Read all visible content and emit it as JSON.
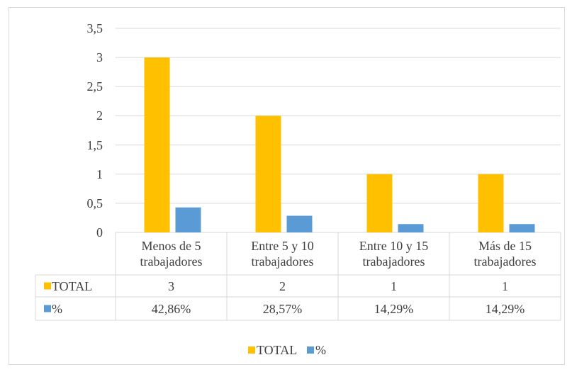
{
  "chart_data": {
    "type": "bar",
    "categories": [
      "Menos de 5 trabajadores",
      "Entre 5 y 10 trabajadores",
      "Entre 10 y 15 trabajadores",
      "Más de 15 trabajadores"
    ],
    "series": [
      {
        "name": "TOTAL",
        "color": "#FFC000",
        "values": [
          3,
          2,
          1,
          1
        ]
      },
      {
        "name": "%",
        "color": "#5B9BD5",
        "values": [
          0.4286,
          0.2857,
          0.1429,
          0.1429
        ],
        "value_labels": [
          "42,86%",
          "28,57%",
          "14,29%",
          "14,29%"
        ]
      }
    ],
    "ylim": [
      0,
      3.5
    ],
    "yticks": [
      0,
      {
        "value": 0.5,
        "label": "0,5"
      },
      1,
      {
        "value": 1.5,
        "label": "1,5"
      },
      2,
      {
        "value": 2.5,
        "label": "2,5"
      },
      3,
      {
        "value": 3.5,
        "label": "3,5"
      }
    ],
    "grid": true,
    "legend": "bottom"
  }
}
